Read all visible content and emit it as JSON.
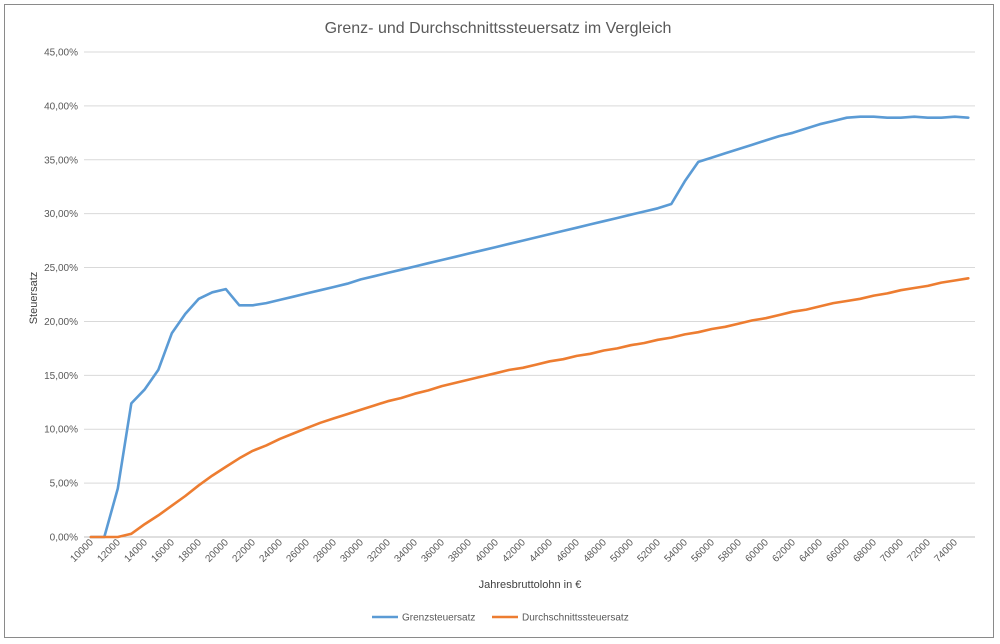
{
  "chart_data": {
    "type": "line",
    "title": "Grenz- und Durchschnittssteuersatz im Vergleich",
    "xlabel": "Jahresbruttolohn in €",
    "ylabel": "Steuersatz",
    "ylim": [
      0,
      45
    ],
    "yticks": [
      "0,00%",
      "5,00%",
      "10,00%",
      "15,00%",
      "20,00%",
      "25,00%",
      "30,00%",
      "35,00%",
      "40,00%",
      "45,00%"
    ],
    "xtick_labels": [
      "10000",
      "12000",
      "14000",
      "16000",
      "18000",
      "20000",
      "22000",
      "24000",
      "26000",
      "28000",
      "30000",
      "32000",
      "34000",
      "36000",
      "38000",
      "40000",
      "42000",
      "44000",
      "46000",
      "48000",
      "50000",
      "52000",
      "54000",
      "56000",
      "58000",
      "60000",
      "62000",
      "64000",
      "66000",
      "68000",
      "70000",
      "72000",
      "74000"
    ],
    "x": [
      10000,
      11000,
      12000,
      13000,
      14000,
      15000,
      16000,
      17000,
      18000,
      19000,
      20000,
      21000,
      22000,
      23000,
      24000,
      25000,
      26000,
      27000,
      28000,
      29000,
      30000,
      31000,
      32000,
      33000,
      34000,
      35000,
      36000,
      37000,
      38000,
      39000,
      40000,
      41000,
      42000,
      43000,
      44000,
      45000,
      46000,
      47000,
      48000,
      49000,
      50000,
      51000,
      52000,
      53000,
      54000,
      55000,
      56000,
      57000,
      58000,
      59000,
      60000,
      61000,
      62000,
      63000,
      64000,
      65000,
      66000,
      67000,
      68000,
      69000,
      70000,
      71000,
      72000,
      73000,
      74000,
      75000
    ],
    "series": [
      {
        "name": "Grenzsteuersatz",
        "color": "#5b9bd5",
        "values": [
          0,
          0,
          4.5,
          12.4,
          13.7,
          15.5,
          18.9,
          20.7,
          22.1,
          22.7,
          23.0,
          21.5,
          21.5,
          21.7,
          22.0,
          22.3,
          22.6,
          22.9,
          23.2,
          23.5,
          23.9,
          24.2,
          24.5,
          24.8,
          25.1,
          25.4,
          25.7,
          26.0,
          26.3,
          26.6,
          26.9,
          27.2,
          27.5,
          27.8,
          28.1,
          28.4,
          28.7,
          29.0,
          29.3,
          29.6,
          29.9,
          30.2,
          30.5,
          30.9,
          33.0,
          34.8,
          35.2,
          35.6,
          36.0,
          36.4,
          36.8,
          37.2,
          37.5,
          37.9,
          38.3,
          38.6,
          38.9,
          39.0,
          39.0,
          38.9,
          38.9,
          39.0,
          38.9,
          38.9,
          39.0,
          38.9
        ]
      },
      {
        "name": "Durchschnittssteuersatz",
        "color": "#ed7d31",
        "values": [
          0,
          0,
          0,
          0.3,
          1.2,
          2.0,
          2.9,
          3.8,
          4.8,
          5.7,
          6.5,
          7.3,
          8.0,
          8.5,
          9.1,
          9.6,
          10.1,
          10.6,
          11.0,
          11.4,
          11.8,
          12.2,
          12.6,
          12.9,
          13.3,
          13.6,
          14.0,
          14.3,
          14.6,
          14.9,
          15.2,
          15.5,
          15.7,
          16.0,
          16.3,
          16.5,
          16.8,
          17.0,
          17.3,
          17.5,
          17.8,
          18.0,
          18.3,
          18.5,
          18.8,
          19.0,
          19.3,
          19.5,
          19.8,
          20.1,
          20.3,
          20.6,
          20.9,
          21.1,
          21.4,
          21.7,
          21.9,
          22.1,
          22.4,
          22.6,
          22.9,
          23.1,
          23.3,
          23.6,
          23.8,
          24.0
        ]
      }
    ],
    "grid": true,
    "legend_position": "bottom"
  }
}
